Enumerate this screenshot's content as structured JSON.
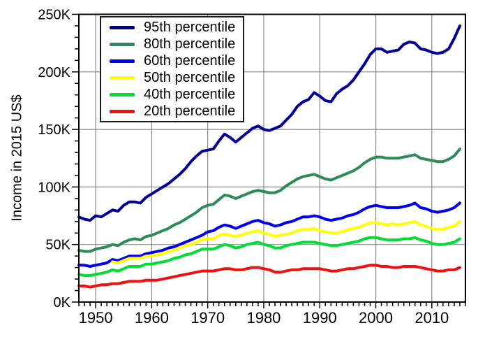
{
  "chart_data": {
    "type": "line",
    "title": "",
    "xlabel": "",
    "ylabel": "Income in 2015 US$",
    "units": "thousands of 2015 US$",
    "x_range": [
      1947,
      2016
    ],
    "y_range_thousands": [
      0,
      250
    ],
    "x_major_ticks": [
      1950,
      1960,
      1970,
      1980,
      1990,
      2000,
      2010
    ],
    "y_major_ticks": [
      0,
      50,
      100,
      150,
      200,
      250
    ],
    "y_tick_labels": [
      "0K",
      "50K",
      "100K",
      "150K",
      "200K",
      "250K"
    ],
    "grid": true,
    "legend_position": "top-left",
    "end_year": 2015,
    "series": [
      {
        "name": "95th percentile",
        "color": "#000099",
        "start_year": 1947,
        "values": [
          74,
          72,
          71,
          75,
          74,
          77,
          80,
          79,
          84,
          87,
          87,
          86,
          91,
          94,
          97,
          100,
          103,
          107,
          111,
          116,
          122,
          127,
          131,
          132,
          133,
          140,
          146,
          143,
          139,
          143,
          147,
          151,
          153,
          150,
          149,
          151,
          153,
          158,
          163,
          170,
          174,
          176,
          182,
          179,
          175,
          174,
          181,
          185,
          188,
          193,
          200,
          207,
          215,
          220,
          220,
          217,
          218,
          219,
          224,
          226,
          225,
          220,
          219,
          217,
          216,
          217,
          220,
          229,
          240
        ]
      },
      {
        "name": "80th percentile",
        "color": "#2E8B57",
        "start_year": 1947,
        "values": [
          45,
          44,
          44,
          46,
          47,
          48,
          50,
          49,
          52,
          54,
          55,
          54,
          57,
          58,
          60,
          62,
          64,
          67,
          69,
          72,
          75,
          78,
          82,
          84,
          85,
          89,
          93,
          92,
          90,
          92,
          94,
          96,
          97,
          96,
          95,
          95,
          97,
          101,
          104,
          107,
          109,
          110,
          111,
          109,
          107,
          106,
          108,
          110,
          112,
          114,
          117,
          121,
          124,
          126,
          126,
          125,
          125,
          125,
          126,
          127,
          128,
          125,
          124,
          123,
          122,
          122,
          124,
          127,
          133
        ]
      },
      {
        "name": "60th percentile",
        "color": "#0000EE",
        "start_year": 1947,
        "values": [
          32,
          32,
          31,
          32,
          33,
          34,
          37,
          36,
          38,
          40,
          40,
          40,
          42,
          43,
          44,
          45,
          47,
          48,
          50,
          52,
          54,
          56,
          58,
          61,
          62,
          65,
          67,
          66,
          64,
          66,
          68,
          70,
          71,
          69,
          68,
          66,
          67,
          69,
          70,
          72,
          74,
          74,
          75,
          74,
          72,
          71,
          72,
          73,
          75,
          76,
          78,
          81,
          83,
          84,
          83,
          82,
          82,
          82,
          83,
          84,
          86,
          82,
          81,
          79,
          78,
          79,
          80,
          82,
          86
        ]
      },
      {
        "name": "50th percentile",
        "color": "#FFFF00",
        "start_year": 1953,
        "values": [
          35,
          34,
          36,
          38,
          38,
          38,
          40,
          40,
          41,
          42,
          44,
          45,
          47,
          49,
          50,
          52,
          54,
          55,
          55,
          58,
          59,
          58,
          57,
          58,
          60,
          61,
          62,
          60,
          59,
          57,
          58,
          59,
          60,
          62,
          63,
          63,
          64,
          62,
          61,
          60,
          60,
          61,
          63,
          64,
          65,
          67,
          69,
          69,
          68,
          67,
          68,
          67,
          68,
          69,
          70,
          67,
          66,
          64,
          63,
          63,
          65,
          66,
          70
        ]
      },
      {
        "name": "40th percentile",
        "color": "#00DD33",
        "start_year": 1947,
        "values": [
          24,
          23,
          23,
          24,
          25,
          26,
          28,
          27,
          29,
          31,
          31,
          31,
          33,
          33,
          34,
          35,
          36,
          38,
          39,
          41,
          42,
          44,
          46,
          46,
          46,
          48,
          50,
          49,
          47,
          48,
          50,
          51,
          52,
          50,
          49,
          47,
          47,
          49,
          50,
          51,
          52,
          52,
          52,
          51,
          50,
          49,
          49,
          50,
          51,
          52,
          53,
          55,
          56,
          56,
          55,
          54,
          54,
          54,
          55,
          55,
          56,
          54,
          53,
          51,
          50,
          50,
          51,
          52,
          55
        ]
      },
      {
        "name": "20th percentile",
        "color": "#EE1111",
        "start_year": 1947,
        "values": [
          14,
          14,
          13,
          14,
          15,
          15,
          16,
          16,
          17,
          18,
          18,
          18,
          19,
          19,
          19,
          20,
          21,
          22,
          23,
          24,
          25,
          26,
          27,
          27,
          27,
          28,
          29,
          29,
          28,
          28,
          29,
          30,
          30,
          29,
          28,
          26,
          26,
          27,
          28,
          28,
          29,
          29,
          29,
          29,
          28,
          27,
          27,
          28,
          29,
          29,
          30,
          31,
          32,
          32,
          31,
          31,
          30,
          30,
          31,
          31,
          31,
          30,
          29,
          28,
          27,
          27,
          28,
          28,
          30
        ]
      }
    ]
  }
}
